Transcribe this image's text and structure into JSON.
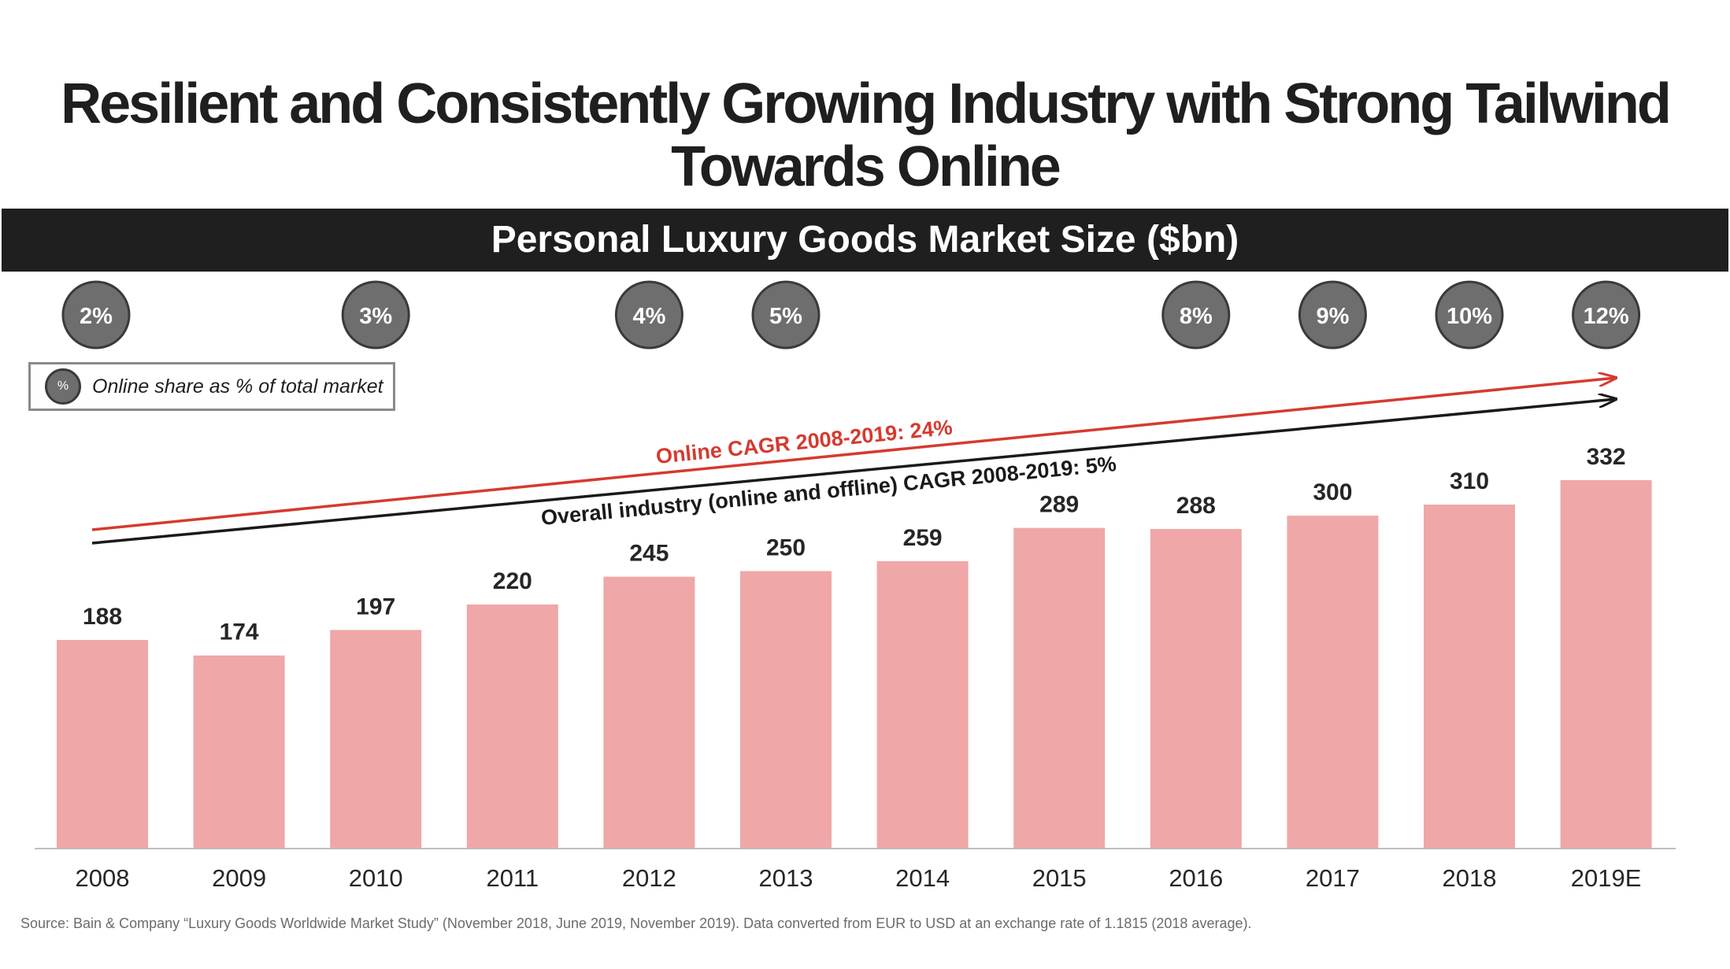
{
  "title": {
    "line1": "Resilient and Consistently Growing Industry with Strong Tailwind",
    "line2": "Towards Online"
  },
  "banner": "Personal Luxury Goods Market Size ($bn)",
  "legend": {
    "symbol": "%",
    "text": "Online share as % of total market"
  },
  "source": "Source: Bain & Company “Luxury Goods Worldwide Market Study” (November 2018, June 2019, November 2019). Data converted from EUR to USD at an exchange rate of 1.1815 (2018 average).",
  "colors": {
    "bar": "#f0a7a7",
    "online_arrow": "#d63a2f",
    "overall_arrow": "#1a1a1a",
    "share_circle": "#6e6e6e",
    "share_circle_border": "#3a3a3a"
  },
  "chart_data": {
    "type": "bar",
    "title": "Personal Luxury Goods Market Size ($bn)",
    "categories": [
      "2008",
      "2009",
      "2010",
      "2011",
      "2012",
      "2013",
      "2014",
      "2015",
      "2016",
      "2017",
      "2018",
      "2019E"
    ],
    "values": [
      188,
      174,
      197,
      220,
      245,
      250,
      259,
      289,
      288,
      300,
      310,
      332
    ],
    "value_labels": [
      "188",
      "174",
      "197",
      "220",
      "245",
      "250",
      "259",
      "289",
      "288",
      "300",
      "310",
      "332"
    ],
    "xlabel": "",
    "ylabel": "$bn",
    "ylim": [
      0,
      332
    ],
    "grid": false,
    "online_share": [
      {
        "category": "2008",
        "label": "2%",
        "value": 2
      },
      {
        "category": "2010",
        "label": "3%",
        "value": 3
      },
      {
        "category": "2012",
        "label": "4%",
        "value": 4
      },
      {
        "category": "2013",
        "label": "5%",
        "value": 5
      },
      {
        "category": "2016",
        "label": "8%",
        "value": 8
      },
      {
        "category": "2017",
        "label": "9%",
        "value": 9
      },
      {
        "category": "2018",
        "label": "10%",
        "value": 10
      },
      {
        "category": "2019E",
        "label": "12%",
        "value": 12
      }
    ],
    "annotations": {
      "online_cagr": "Online CAGR 2008-2019: 24%",
      "overall_cagr": "Overall industry (online and offline) CAGR 2008-2019: 5%"
    }
  }
}
